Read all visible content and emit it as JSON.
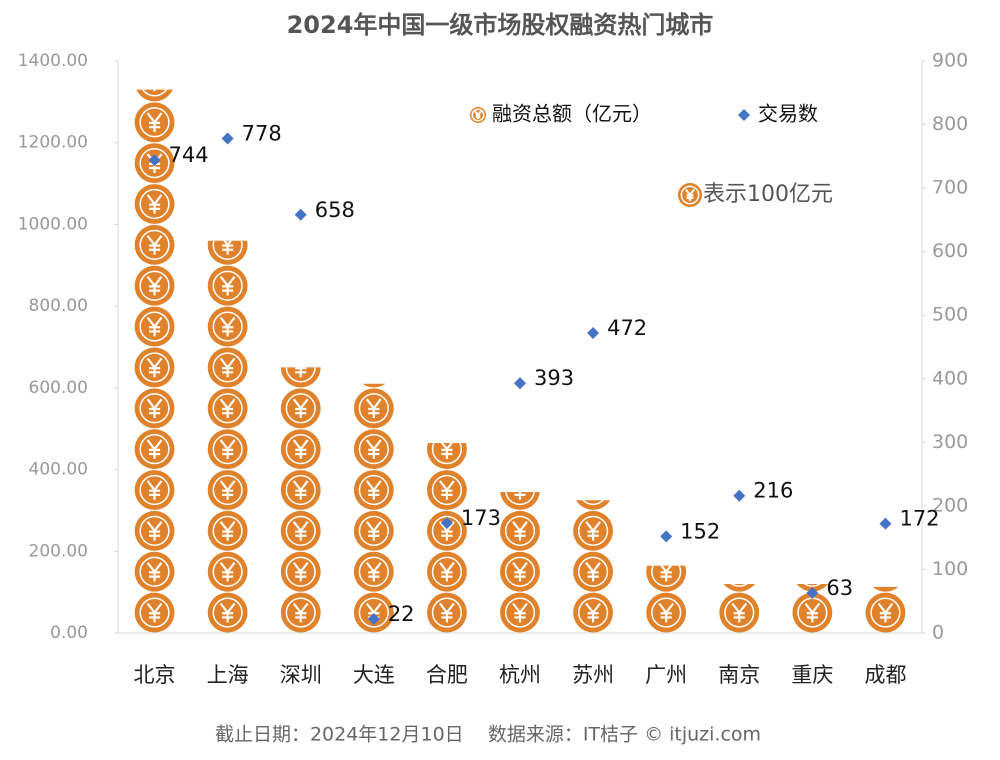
{
  "chart_data": {
    "type": "pictogram-bar-scatter",
    "title": "2024年中国一级市场股权融资热门城市",
    "categories": [
      "北京",
      "上海",
      "深圳",
      "大连",
      "合肥",
      "杭州",
      "苏州",
      "广州",
      "南京",
      "重庆",
      "成都"
    ],
    "series": [
      {
        "name": "融资总额（亿元）",
        "color": "#e0822b",
        "values": [
          1330,
          960,
          650,
          610,
          465,
          345,
          325,
          165,
          120,
          120,
          113
        ]
      },
      {
        "name": "交易数",
        "color": "#4472c4",
        "axis": "y2",
        "values": [
          744,
          778,
          658,
          22,
          173,
          393,
          472,
          152,
          216,
          63,
          172
        ]
      }
    ],
    "unit_note": "表示100亿元",
    "ylim": [
      0,
      1400
    ],
    "yticks": [
      {
        "value": 0,
        "label": "0.00"
      },
      {
        "value": 200,
        "label": "200.00"
      },
      {
        "value": 400,
        "label": "400.00"
      },
      {
        "value": 600,
        "label": "600.00"
      },
      {
        "value": 800,
        "label": "800.00"
      },
      {
        "value": 1000,
        "label": "1000.00"
      },
      {
        "value": 1200,
        "label": "1200.00"
      },
      {
        "value": 1400,
        "label": "1400.00"
      }
    ],
    "y2lim": [
      0,
      900
    ],
    "y2ticks": [
      0,
      100,
      200,
      300,
      400,
      500,
      600,
      700,
      800,
      900
    ],
    "footer": "截止日期：2024年12月10日    数据来源：IT桔子 © itjuzi.com"
  }
}
